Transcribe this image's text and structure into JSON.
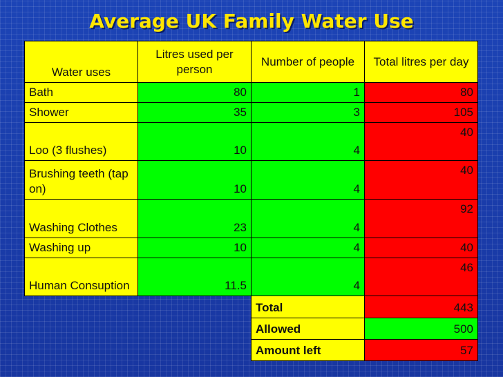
{
  "title": "Average UK Family Water Use",
  "headers": {
    "use": "Water uses",
    "litres": "Litres used per person",
    "people": "Number of people",
    "total": "Total litres per day"
  },
  "rows": [
    {
      "use": "Bath",
      "litres": "80",
      "people": "1",
      "total": "80"
    },
    {
      "use": "Shower",
      "litres": "35",
      "people": "3",
      "total": "105"
    },
    {
      "use": "Loo (3 flushes)",
      "litres": "10",
      "people": "4",
      "total": "40"
    },
    {
      "use": "Brushing teeth (tap on)",
      "litres": "10",
      "people": "4",
      "total": "40"
    },
    {
      "use": "Washing Clothes",
      "litres": "23",
      "people": "4",
      "total": "92"
    },
    {
      "use": "Washing up",
      "litres": "10",
      "people": "4",
      "total": "40"
    },
    {
      "use": "Human Consuption",
      "litres": "11.5",
      "people": "4",
      "total": "46"
    }
  ],
  "summary": {
    "total": {
      "label": "Total",
      "value": "443"
    },
    "allowed": {
      "label": "Allowed",
      "value": "500"
    },
    "amount_left": {
      "label": "Amount left",
      "value": "57"
    }
  },
  "colors": {
    "background": "#1b3fae",
    "title": "#ffe600",
    "yellow": "#ffff00",
    "green": "#00ff00",
    "red": "#ff0000"
  }
}
